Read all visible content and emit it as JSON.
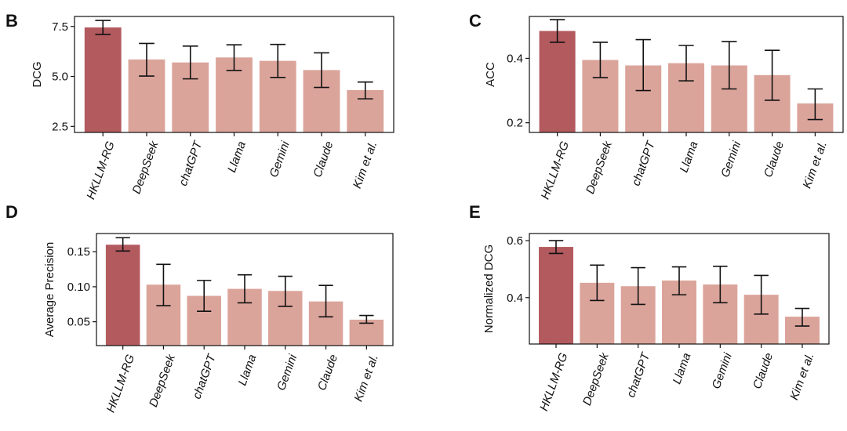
{
  "colors": {
    "highlight": "#b35a5f",
    "others": "#dba49b",
    "axis": "#111111",
    "errorbar": "#111111"
  },
  "chart_data": [
    {
      "panel": "B",
      "type": "bar",
      "ylabel": "DCG",
      "categories": [
        "HKLLM-RG",
        "DeepSeek",
        "chatGPT",
        "Llama",
        "Gemini",
        "Claude",
        "Kim et al."
      ],
      "values": [
        7.45,
        5.85,
        5.7,
        5.95,
        5.78,
        5.32,
        4.32
      ],
      "err_low": [
        7.1,
        5.02,
        4.88,
        5.3,
        4.95,
        4.45,
        3.88
      ],
      "err_high": [
        7.8,
        6.65,
        6.52,
        6.58,
        6.6,
        6.18,
        4.72
      ],
      "ylim": [
        2.2,
        8.0
      ],
      "yticks": [
        2.5,
        5.0,
        7.5
      ],
      "ytick_labels": [
        "2.5",
        "5.0",
        "7.5"
      ],
      "highlight_index": 0,
      "grid": false
    },
    {
      "panel": "C",
      "type": "bar",
      "ylabel": "ACC",
      "categories": [
        "HKLLM-RG",
        "DeepSeek",
        "chatGPT",
        "Llama",
        "Gemini",
        "Claude",
        "Kim et al."
      ],
      "values": [
        0.485,
        0.395,
        0.378,
        0.385,
        0.378,
        0.348,
        0.26
      ],
      "err_low": [
        0.45,
        0.34,
        0.3,
        0.33,
        0.305,
        0.27,
        0.21
      ],
      "err_high": [
        0.52,
        0.45,
        0.458,
        0.44,
        0.452,
        0.425,
        0.305
      ],
      "ylim": [
        0.17,
        0.53
      ],
      "yticks": [
        0.2,
        0.4
      ],
      "ytick_labels": [
        "0.2",
        "0.4"
      ],
      "highlight_index": 0,
      "grid": false
    },
    {
      "panel": "D",
      "type": "bar",
      "ylabel": "Average Precision",
      "categories": [
        "HKLLM-RG",
        "DeepSeek",
        "chatGPT",
        "Llama",
        "Gemini",
        "Claude",
        "Kim et al."
      ],
      "values": [
        0.16,
        0.103,
        0.087,
        0.097,
        0.094,
        0.079,
        0.053
      ],
      "err_low": [
        0.151,
        0.073,
        0.065,
        0.077,
        0.072,
        0.057,
        0.048
      ],
      "err_high": [
        0.17,
        0.132,
        0.109,
        0.117,
        0.115,
        0.102,
        0.059
      ],
      "ylim": [
        0.016,
        0.176
      ],
      "yticks": [
        0.05,
        0.1,
        0.15
      ],
      "ytick_labels": [
        "0.05",
        "0.10",
        "0.15"
      ],
      "highlight_index": 0,
      "grid": false
    },
    {
      "panel": "E",
      "type": "bar",
      "ylabel": "Normalized DCG",
      "categories": [
        "HKLLM-RG",
        "DeepSeek",
        "chatGPT",
        "Llama",
        "Gemini",
        "Claude",
        "Kim et al."
      ],
      "values": [
        0.578,
        0.452,
        0.44,
        0.46,
        0.446,
        0.41,
        0.333
      ],
      "err_low": [
        0.555,
        0.39,
        0.376,
        0.41,
        0.382,
        0.342,
        0.3
      ],
      "err_high": [
        0.6,
        0.514,
        0.505,
        0.508,
        0.51,
        0.478,
        0.362
      ],
      "ylim": [
        0.237,
        0.625
      ],
      "yticks": [
        0.4,
        0.6
      ],
      "ytick_labels": [
        "0.4",
        "0.6"
      ],
      "highlight_index": 0,
      "grid": false
    }
  ]
}
